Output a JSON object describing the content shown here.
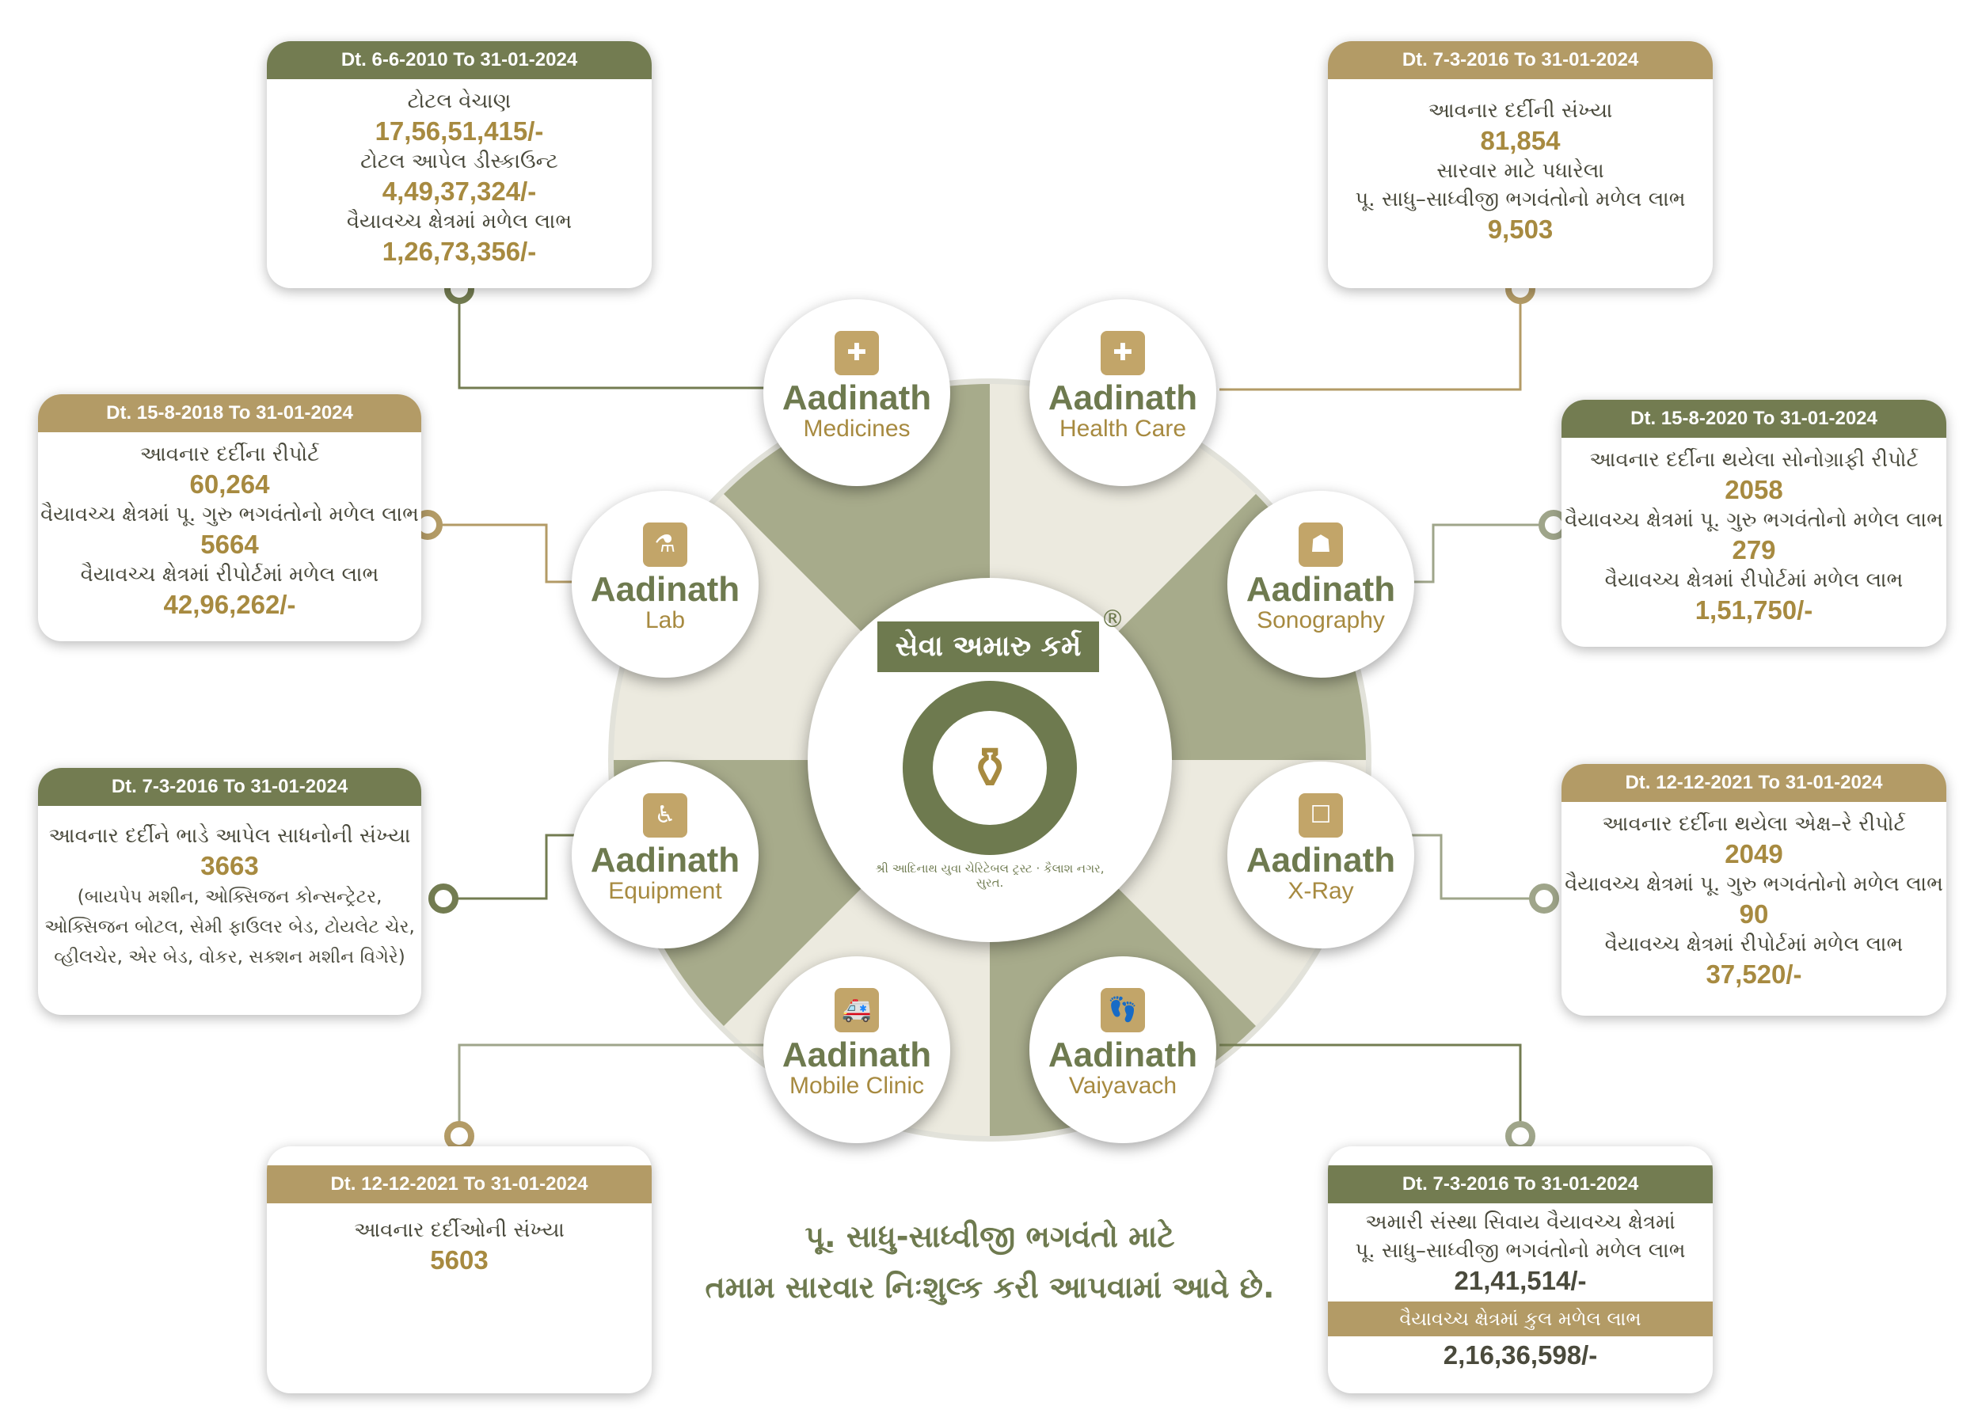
{
  "center": {
    "brand": "સેવા અમારુ કર્મ",
    "registered": "®",
    "emblem_text": "શ્રી આદિનાથ યુવા ચેરિટેબલ ટ્રસ્ટ · કૈલાશ નગર, સુરત."
  },
  "services": [
    {
      "name": "Aadinath",
      "sub": "Medicines",
      "icon": "medicine-cross-icon"
    },
    {
      "name": "Aadinath",
      "sub": "Health Care",
      "icon": "leaf-cross-icon"
    },
    {
      "name": "Aadinath",
      "sub": "Lab",
      "icon": "flask-icon"
    },
    {
      "name": "Aadinath",
      "sub": "Sonography",
      "icon": "ultrasound-icon"
    },
    {
      "name": "Aadinath",
      "sub": "Equipment",
      "icon": "wheelchair-icon"
    },
    {
      "name": "Aadinath",
      "sub": "X-Ray",
      "icon": "xray-icon"
    },
    {
      "name": "Aadinath",
      "sub": "Mobile Clinic",
      "icon": "ambulance-icon"
    },
    {
      "name": "Aadinath",
      "sub": "Vaiyavach",
      "icon": "footprints-icon"
    }
  ],
  "cards": {
    "medicines": {
      "date": "Dt. 6-6-2010  To  31-01-2024",
      "l1": "ટોટલ વેચાણ",
      "v1": "17,56,51,415/-",
      "l2": "ટોટલ આપેલ ડીસ્કાઉન્ટ",
      "v2": "4,49,37,324/-",
      "l3": "વૈયાવચ્ચ ક્ષેત્રમાં મળેલ લાભ",
      "v3": "1,26,73,356/-"
    },
    "health": {
      "date": "Dt. 7-3-2016  To  31-01-2024",
      "l1": "આવનાર દર્દીની સંખ્યા",
      "v1": "81,854",
      "l2": "સારવાર માટે પધારેલા",
      "l3": "પૂ. સાધુ–સાધ્વીજી ભગવંતોનો મળેલ લાભ",
      "v3": "9,503"
    },
    "lab": {
      "date": "Dt. 15-8-2018  To  31-01-2024",
      "l1": "આવનાર દર્દીના રીપોર્ટ",
      "v1": "60,264",
      "l2": "વૈયાવચ્ચ ક્ષેત્રમાં પૂ. ગુરુ ભગવંતોનો મળેલ લાભ",
      "v2": "5664",
      "l3": "વૈયાવચ્ચ ક્ષેત્રમાં રીપોર્ટમાં મળેલ લાભ",
      "v3": "42,96,262/-"
    },
    "sono": {
      "date": "Dt. 15-8-2020  To  31-01-2024",
      "l1": "આવનાર દર્દીના થયેલા સોનોગ્રાફી રીપોર્ટ",
      "v1": "2058",
      "l2": "વૈયાવચ્ચ ક્ષેત્રમાં પૂ. ગુરુ ભગવંતોનો મળેલ લાભ",
      "v2": "279",
      "l3": "વૈયાવચ્ચ ક્ષેત્રમાં રીપોર્ટમાં મળેલ લાભ",
      "v3": "1,51,750/-"
    },
    "equip": {
      "date": "Dt. 7-3-2016  To  31-01-2024",
      "l1": "આવનાર દર્દીને ભાડે આપેલ સાધનોની સંખ્યા",
      "v1": "3663",
      "note1": "(બાયપેપ મશીન, ઓક્સિજન કોન્સન્ટ્રેટર,",
      "note2": "ઓક્સિજન બોટલ, સેમી ફાઉલર બેડ, ટોયલેટ ચેર,",
      "note3": "વ્હીલચેર, એર બેડ, વોકર, સક્શન મશીન વિગેરે)"
    },
    "xray": {
      "date": "Dt. 12-12-2021  To  31-01-2024",
      "l1": "આવનાર દર્દીના થયેલા એક્ષ–રે રીપોર્ટ",
      "v1": "2049",
      "l2": "વૈયાવચ્ચ ક્ષેત્રમાં પૂ. ગુરુ ભગવંતોનો મળેલ લાભ",
      "v2": "90",
      "l3": "વૈયાવચ્ચ ક્ષેત્રમાં રીપોર્ટમાં મળેલ લાભ",
      "v3": "37,520/-"
    },
    "mobile": {
      "date": "Dt. 12-12-2021  To  31-01-2024",
      "l1": "આવનાર દર્દીઓની સંખ્યા",
      "v1": "5603"
    },
    "vaiyavach": {
      "date": "Dt. 7-3-2016  To  31-01-2024",
      "l1": "અમારી સંસ્થા સિવાય વૈયાવચ્ચ ક્ષેત્રમાં",
      "l2": "પૂ. સાધુ–સાધ્વીજી ભગવંતોનો મળેલ લાભ",
      "v2": "21,41,514/-",
      "bar": "વૈયાવચ્ચ ક્ષેત્રમાં કુલ મળેલ લાભ",
      "v3": "2,16,36,598/-"
    }
  },
  "footer": {
    "line1": "પૂ. સાધુ-સાધ્વીજી ભગવંતો માટે",
    "line2": "તમામ સારવાર નિઃશુલ્ક કરી આપવામાં આવે છે."
  },
  "colors": {
    "olive": "#737c51",
    "gold": "#b39b66",
    "dark_olive": "#6e7a4f",
    "value_gold": "#a78a40"
  }
}
